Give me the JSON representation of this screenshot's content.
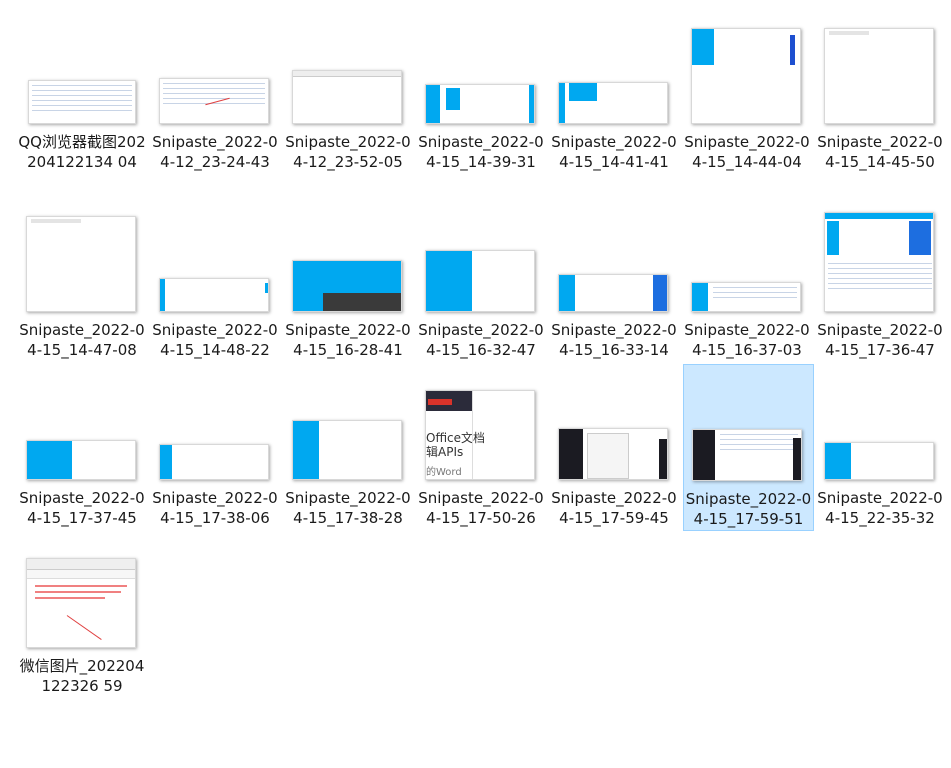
{
  "files": [
    {
      "name": "QQ浏览器截图202204122134 04"
    },
    {
      "name": "Snipaste_2022-04-12_23-24-43"
    },
    {
      "name": "Snipaste_2022-04-12_23-52-05"
    },
    {
      "name": "Snipaste_2022-04-15_14-39-31"
    },
    {
      "name": "Snipaste_2022-04-15_14-41-41"
    },
    {
      "name": "Snipaste_2022-04-15_14-44-04"
    },
    {
      "name": "Snipaste_2022-04-15_14-45-50"
    },
    {
      "name": "Snipaste_2022-04-15_14-47-08"
    },
    {
      "name": "Snipaste_2022-04-15_14-48-22"
    },
    {
      "name": "Snipaste_2022-04-15_16-28-41"
    },
    {
      "name": "Snipaste_2022-04-15_16-32-47"
    },
    {
      "name": "Snipaste_2022-04-15_16-33-14"
    },
    {
      "name": "Snipaste_2022-04-15_16-37-03"
    },
    {
      "name": "Snipaste_2022-04-15_17-36-47"
    },
    {
      "name": "Snipaste_2022-04-15_17-37-45"
    },
    {
      "name": "Snipaste_2022-04-15_17-38-06"
    },
    {
      "name": "Snipaste_2022-04-15_17-38-28"
    },
    {
      "name": "Snipaste_2022-04-15_17-50-26"
    },
    {
      "name": "Snipaste_2022-04-15_17-59-45"
    },
    {
      "name": "Snipaste_2022-04-15_17-59-51",
      "selected": true
    },
    {
      "name": "Snipaste_2022-04-15_22-35-32"
    },
    {
      "name": "微信图片_202204122326 59"
    }
  ],
  "thumb_text": {
    "t17_line1": "Office文档",
    "t17_line2": "辑APIs",
    "t17_line3": "的Word"
  }
}
